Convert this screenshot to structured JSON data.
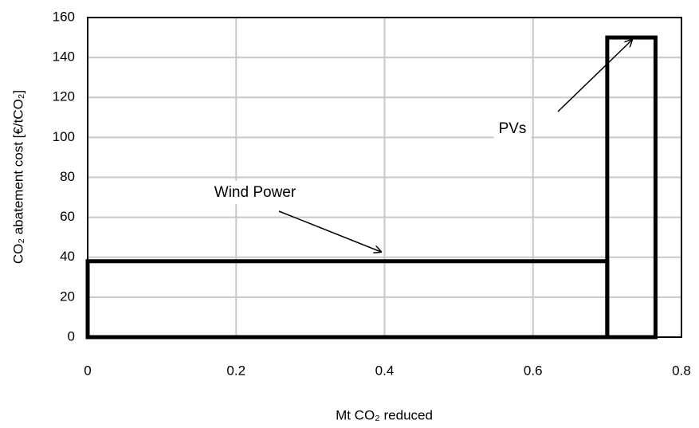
{
  "chart_data": {
    "type": "bar",
    "xlabel": "Mt CO₂ reduced",
    "ylabel": "CO₂ abatement cost [€/tCO₂]",
    "categories": [
      "Wind Power",
      "PVs"
    ],
    "bins": [
      0,
      0.7,
      0.765
    ],
    "values": [
      38,
      150
    ],
    "color": "#000000",
    "xlim": [
      0,
      0.8
    ],
    "xticks": [
      0,
      0.2,
      0.4,
      0.6,
      0.8
    ],
    "ylim": [
      0,
      160
    ],
    "yticks": [
      0,
      20,
      40,
      60,
      80,
      100,
      120,
      140,
      160
    ],
    "grid": true
  }
}
